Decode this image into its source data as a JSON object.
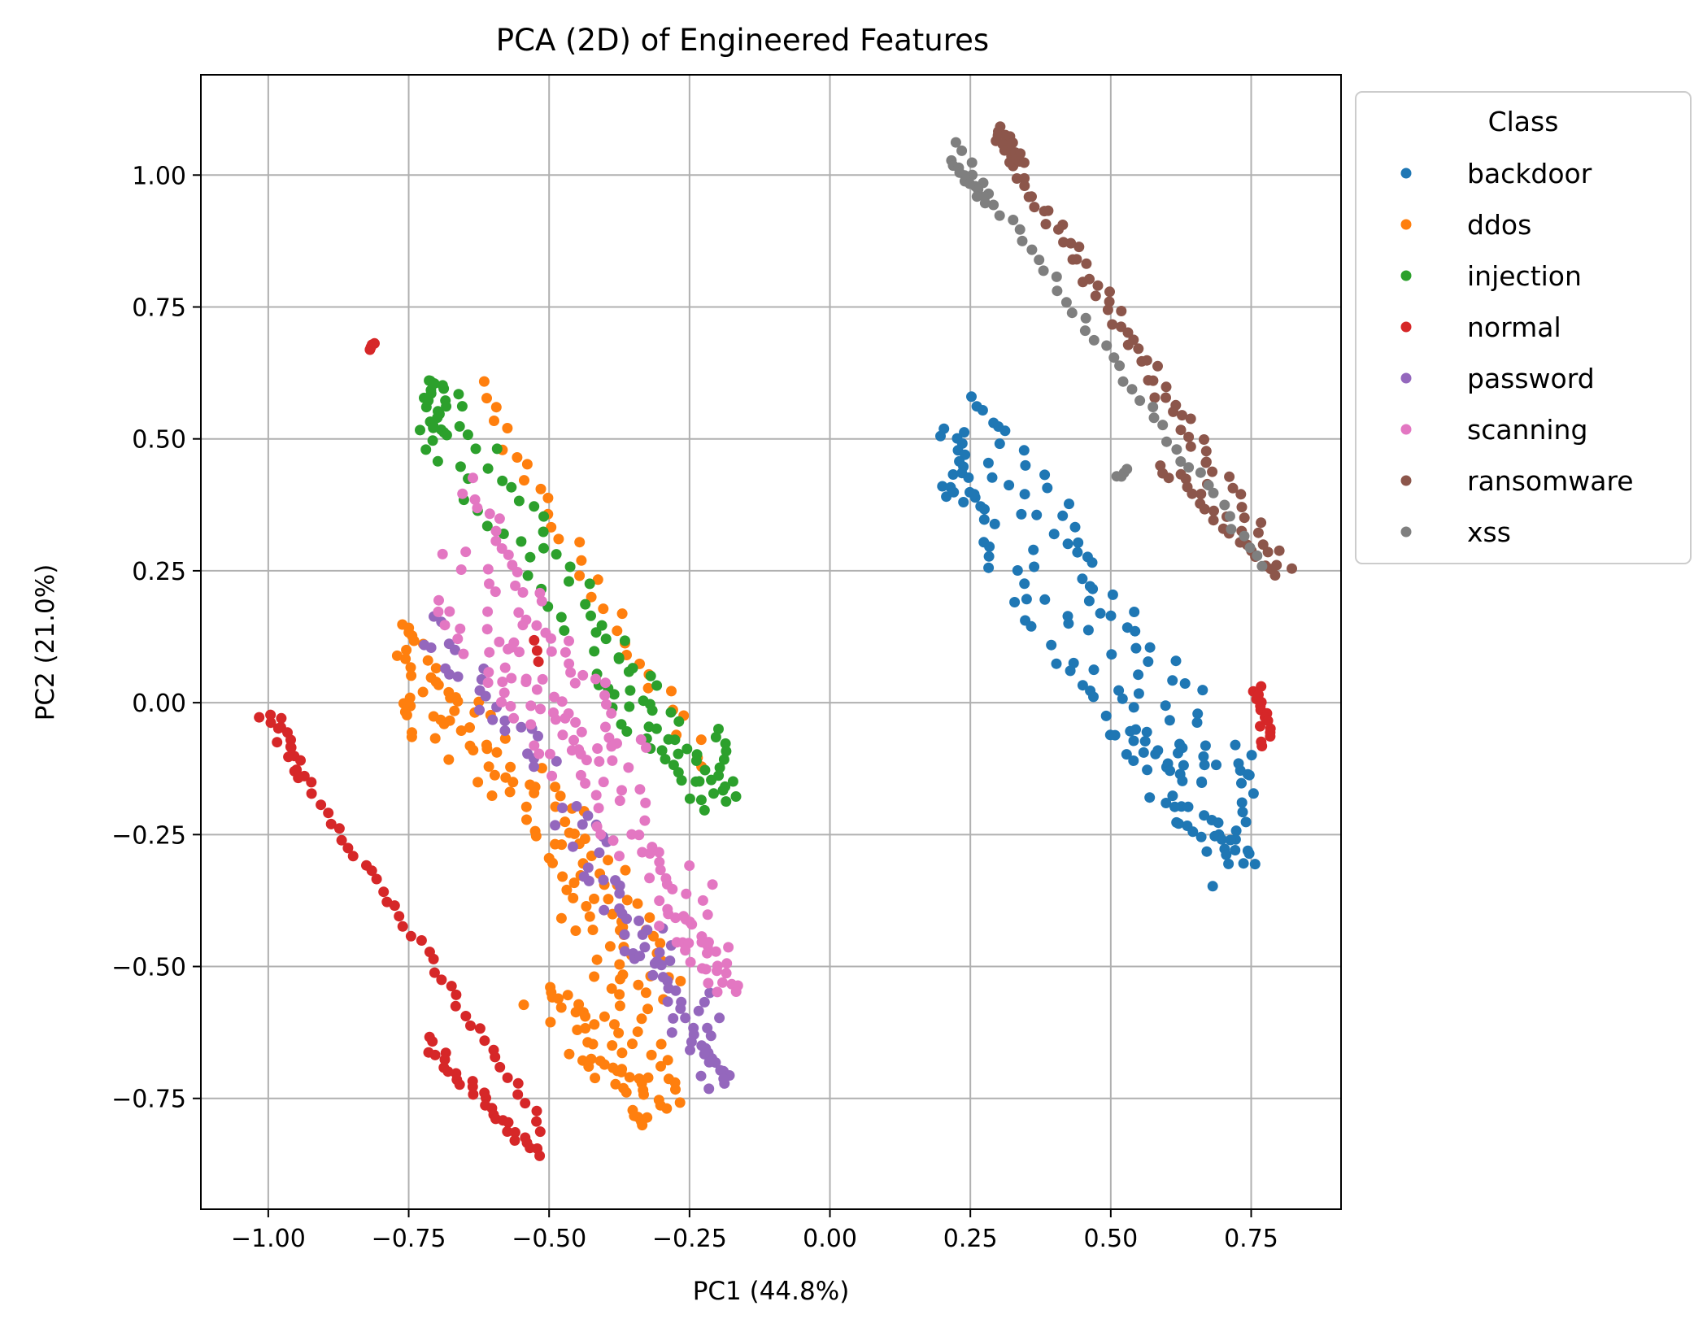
{
  "chart_data": {
    "type": "scatter",
    "title": "PCA (2D) of Engineered Features",
    "xlabel": "PC1 (44.8%)",
    "ylabel": "PC2 (21.0%)",
    "xlim": [
      -1.12,
      0.91
    ],
    "ylim": [
      -0.96,
      1.19
    ],
    "xticks": [
      -1.0,
      -0.75,
      -0.5,
      -0.25,
      0.0,
      0.25,
      0.5,
      0.75
    ],
    "xtick_labels": [
      "−1.00",
      "−0.75",
      "−0.50",
      "−0.25",
      "0.00",
      "0.25",
      "0.50",
      "0.75"
    ],
    "yticks": [
      -0.75,
      -0.5,
      -0.25,
      0.0,
      0.25,
      0.5,
      0.75,
      1.0
    ],
    "ytick_labels": [
      "−0.75",
      "−0.50",
      "−0.25",
      "0.00",
      "0.25",
      "0.50",
      "0.75",
      "1.00"
    ],
    "grid": true,
    "legend": {
      "title": "Class",
      "placement": "outside-upper-right"
    },
    "series": [
      {
        "name": "backdoor",
        "color": "#1f77b4",
        "segments": [
          {
            "from": [
              0.24,
              0.57
            ],
            "to": [
              0.72,
              -0.15
            ],
            "n": 60,
            "spread": 0.05
          },
          {
            "from": [
              0.21,
              0.43
            ],
            "to": [
              0.72,
              -0.32
            ],
            "n": 60,
            "spread": 0.05
          },
          {
            "from": [
              0.52,
              -0.05
            ],
            "to": [
              0.74,
              -0.32
            ],
            "n": 25,
            "spread": 0.04
          },
          {
            "from": [
              0.74,
              -0.08
            ],
            "to": [
              0.73,
              -0.28
            ],
            "n": 12,
            "spread": 0.02
          },
          {
            "from": [
              0.21,
              0.52
            ],
            "to": [
              0.24,
              0.38
            ],
            "n": 14,
            "spread": 0.02
          }
        ]
      },
      {
        "name": "ddos",
        "color": "#ff7f0e",
        "segments": [
          {
            "from": [
              -0.63,
              0.6
            ],
            "to": [
              -0.22,
              -0.12
            ],
            "n": 34,
            "spread": 0.02
          },
          {
            "from": [
              -0.75,
              0.15
            ],
            "to": [
              -0.72,
              -0.07
            ],
            "n": 28,
            "spread": 0.04
          },
          {
            "from": [
              -0.7,
              0.0
            ],
            "to": [
              -0.46,
              -0.25
            ],
            "n": 42,
            "spread": 0.06
          },
          {
            "from": [
              -0.48,
              -0.25
            ],
            "to": [
              -0.3,
              -0.78
            ],
            "n": 60,
            "spread": 0.05
          },
          {
            "from": [
              -0.52,
              -0.55
            ],
            "to": [
              -0.3,
              -0.78
            ],
            "n": 40,
            "spread": 0.04
          },
          {
            "from": [
              -0.4,
              -0.3
            ],
            "to": [
              -0.27,
              -0.55
            ],
            "n": 18,
            "spread": 0.03
          }
        ]
      },
      {
        "name": "injection",
        "color": "#2ca02c",
        "segments": [
          {
            "from": [
              -0.7,
              0.62
            ],
            "to": [
              -0.2,
              -0.17
            ],
            "n": 38,
            "spread": 0.02
          },
          {
            "from": [
              -0.72,
              0.52
            ],
            "to": [
              -0.2,
              -0.2
            ],
            "n": 30,
            "spread": 0.025
          },
          {
            "from": [
              -0.71,
              0.61
            ],
            "to": [
              -0.69,
              0.5
            ],
            "n": 20,
            "spread": 0.02
          },
          {
            "from": [
              -0.42,
              0.05
            ],
            "to": [
              -0.22,
              -0.2
            ],
            "n": 20,
            "spread": 0.02
          },
          {
            "from": [
              -0.2,
              -0.05
            ],
            "to": [
              -0.18,
              -0.18
            ],
            "n": 10,
            "spread": 0.015
          }
        ]
      },
      {
        "name": "normal",
        "color": "#d62728",
        "segments": [
          {
            "from": [
              -1.01,
              -0.02
            ],
            "to": [
              -0.51,
              -0.81
            ],
            "n": 48,
            "spread": 0.01
          },
          {
            "from": [
              -0.99,
              -0.02
            ],
            "to": [
              -0.94,
              -0.14
            ],
            "n": 10,
            "spread": 0.01
          },
          {
            "from": [
              -0.72,
              -0.64
            ],
            "to": [
              -0.52,
              -0.86
            ],
            "n": 30,
            "spread": 0.012
          },
          {
            "from": [
              -0.82,
              0.67
            ],
            "to": [
              -0.81,
              0.68
            ],
            "n": 4,
            "spread": 0.003
          },
          {
            "from": [
              0.76,
              0.03
            ],
            "to": [
              0.78,
              -0.08
            ],
            "n": 16,
            "spread": 0.012
          },
          {
            "from": [
              -0.52,
              0.12
            ],
            "to": [
              -0.51,
              0.08
            ],
            "n": 3,
            "spread": 0.01
          }
        ]
      },
      {
        "name": "password",
        "color": "#9467bd",
        "segments": [
          {
            "from": [
              -0.72,
              0.15
            ],
            "to": [
              -0.5,
              -0.12
            ],
            "n": 25,
            "spread": 0.03
          },
          {
            "from": [
              -0.48,
              -0.2
            ],
            "to": [
              -0.3,
              -0.5
            ],
            "n": 30,
            "spread": 0.04
          },
          {
            "from": [
              -0.35,
              -0.45
            ],
            "to": [
              -0.2,
              -0.73
            ],
            "n": 30,
            "spread": 0.03
          },
          {
            "from": [
              -0.22,
              -0.55
            ],
            "to": [
              -0.2,
              -0.73
            ],
            "n": 12,
            "spread": 0.02
          }
        ]
      },
      {
        "name": "scanning",
        "color": "#e377c2",
        "segments": [
          {
            "from": [
              -0.66,
              0.41
            ],
            "to": [
              -0.35,
              -0.1
            ],
            "n": 35,
            "spread": 0.03
          },
          {
            "from": [
              -0.69,
              0.2
            ],
            "to": [
              -0.28,
              -0.38
            ],
            "n": 45,
            "spread": 0.04
          },
          {
            "from": [
              -0.67,
              0.3
            ],
            "to": [
              -0.16,
              -0.48
            ],
            "n": 40,
            "spread": 0.04
          },
          {
            "from": [
              -0.3,
              -0.4
            ],
            "to": [
              -0.17,
              -0.55
            ],
            "n": 28,
            "spread": 0.03
          },
          {
            "from": [
              -0.6,
              0.1
            ],
            "to": [
              -0.4,
              -0.1
            ],
            "n": 15,
            "spread": 0.03
          }
        ]
      },
      {
        "name": "ransomware",
        "color": "#8c564b",
        "segments": [
          {
            "from": [
              0.3,
              1.07
            ],
            "to": [
              0.81,
              0.25
            ],
            "n": 48,
            "spread": 0.015
          },
          {
            "from": [
              0.33,
              1.03
            ],
            "to": [
              0.68,
              0.42
            ],
            "n": 20,
            "spread": 0.012
          },
          {
            "from": [
              0.59,
              0.45
            ],
            "to": [
              0.8,
              0.25
            ],
            "n": 24,
            "spread": 0.012
          },
          {
            "from": [
              0.3,
              1.09
            ],
            "to": [
              0.34,
              1.02
            ],
            "n": 14,
            "spread": 0.012
          }
        ]
      },
      {
        "name": "xss",
        "color": "#7f7f7f",
        "segments": [
          {
            "from": [
              0.22,
              1.06
            ],
            "to": [
              0.77,
              0.26
            ],
            "n": 44,
            "spread": 0.01
          },
          {
            "from": [
              0.22,
              1.03
            ],
            "to": [
              0.28,
              0.95
            ],
            "n": 12,
            "spread": 0.01
          },
          {
            "from": [
              0.51,
              0.43
            ],
            "to": [
              0.53,
              0.44
            ],
            "n": 4,
            "spread": 0.005
          }
        ]
      }
    ]
  }
}
